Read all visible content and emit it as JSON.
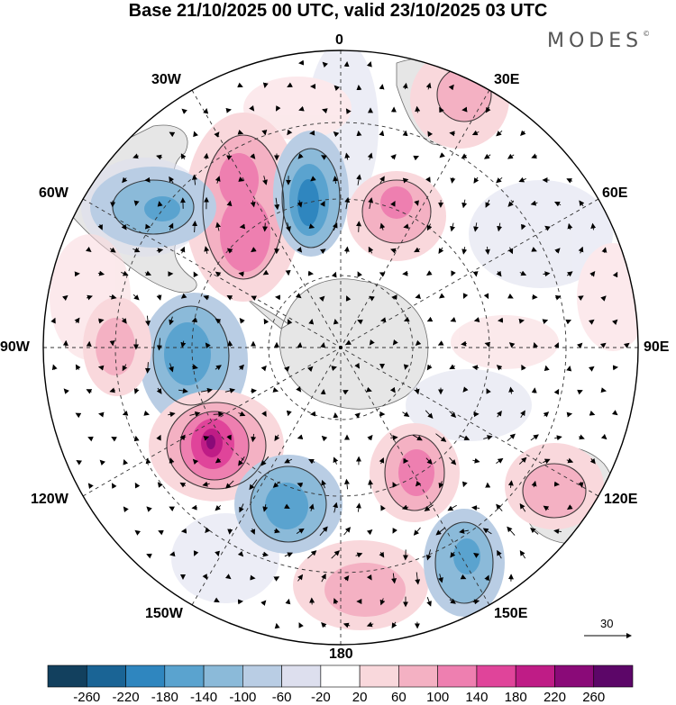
{
  "title": "Base 21/10/2025 00 UTC, valid 23/10/2025 03 UTC",
  "brand": "MODES",
  "brand_mark": "©",
  "map": {
    "projection": "south-polar-stereographic",
    "longitude_labels": [
      "0",
      "30E",
      "60E",
      "90E",
      "120E",
      "150E",
      "180",
      "150W",
      "120W",
      "90W",
      "60W",
      "30W"
    ]
  },
  "reference_vector": {
    "label": "30"
  },
  "colorbar": {
    "ticks": [
      "-260",
      "-220",
      "-180",
      "-140",
      "-100",
      "-60",
      "-20",
      "20",
      "60",
      "100",
      "140",
      "180",
      "220",
      "260"
    ],
    "colors": [
      "#12405e",
      "#1a6495",
      "#2f86bf",
      "#5aa3cf",
      "#8bbad9",
      "#b9cde4",
      "#dddfee",
      "#ffffff",
      "#f9d8dc",
      "#f4b1c3",
      "#ee7fb0",
      "#e0449a",
      "#bf1c86",
      "#8a0a78",
      "#5c0668"
    ]
  },
  "colors": {
    "land": "#e6e6e6",
    "coast": "#6e6e6e",
    "grid": "#333333"
  }
}
